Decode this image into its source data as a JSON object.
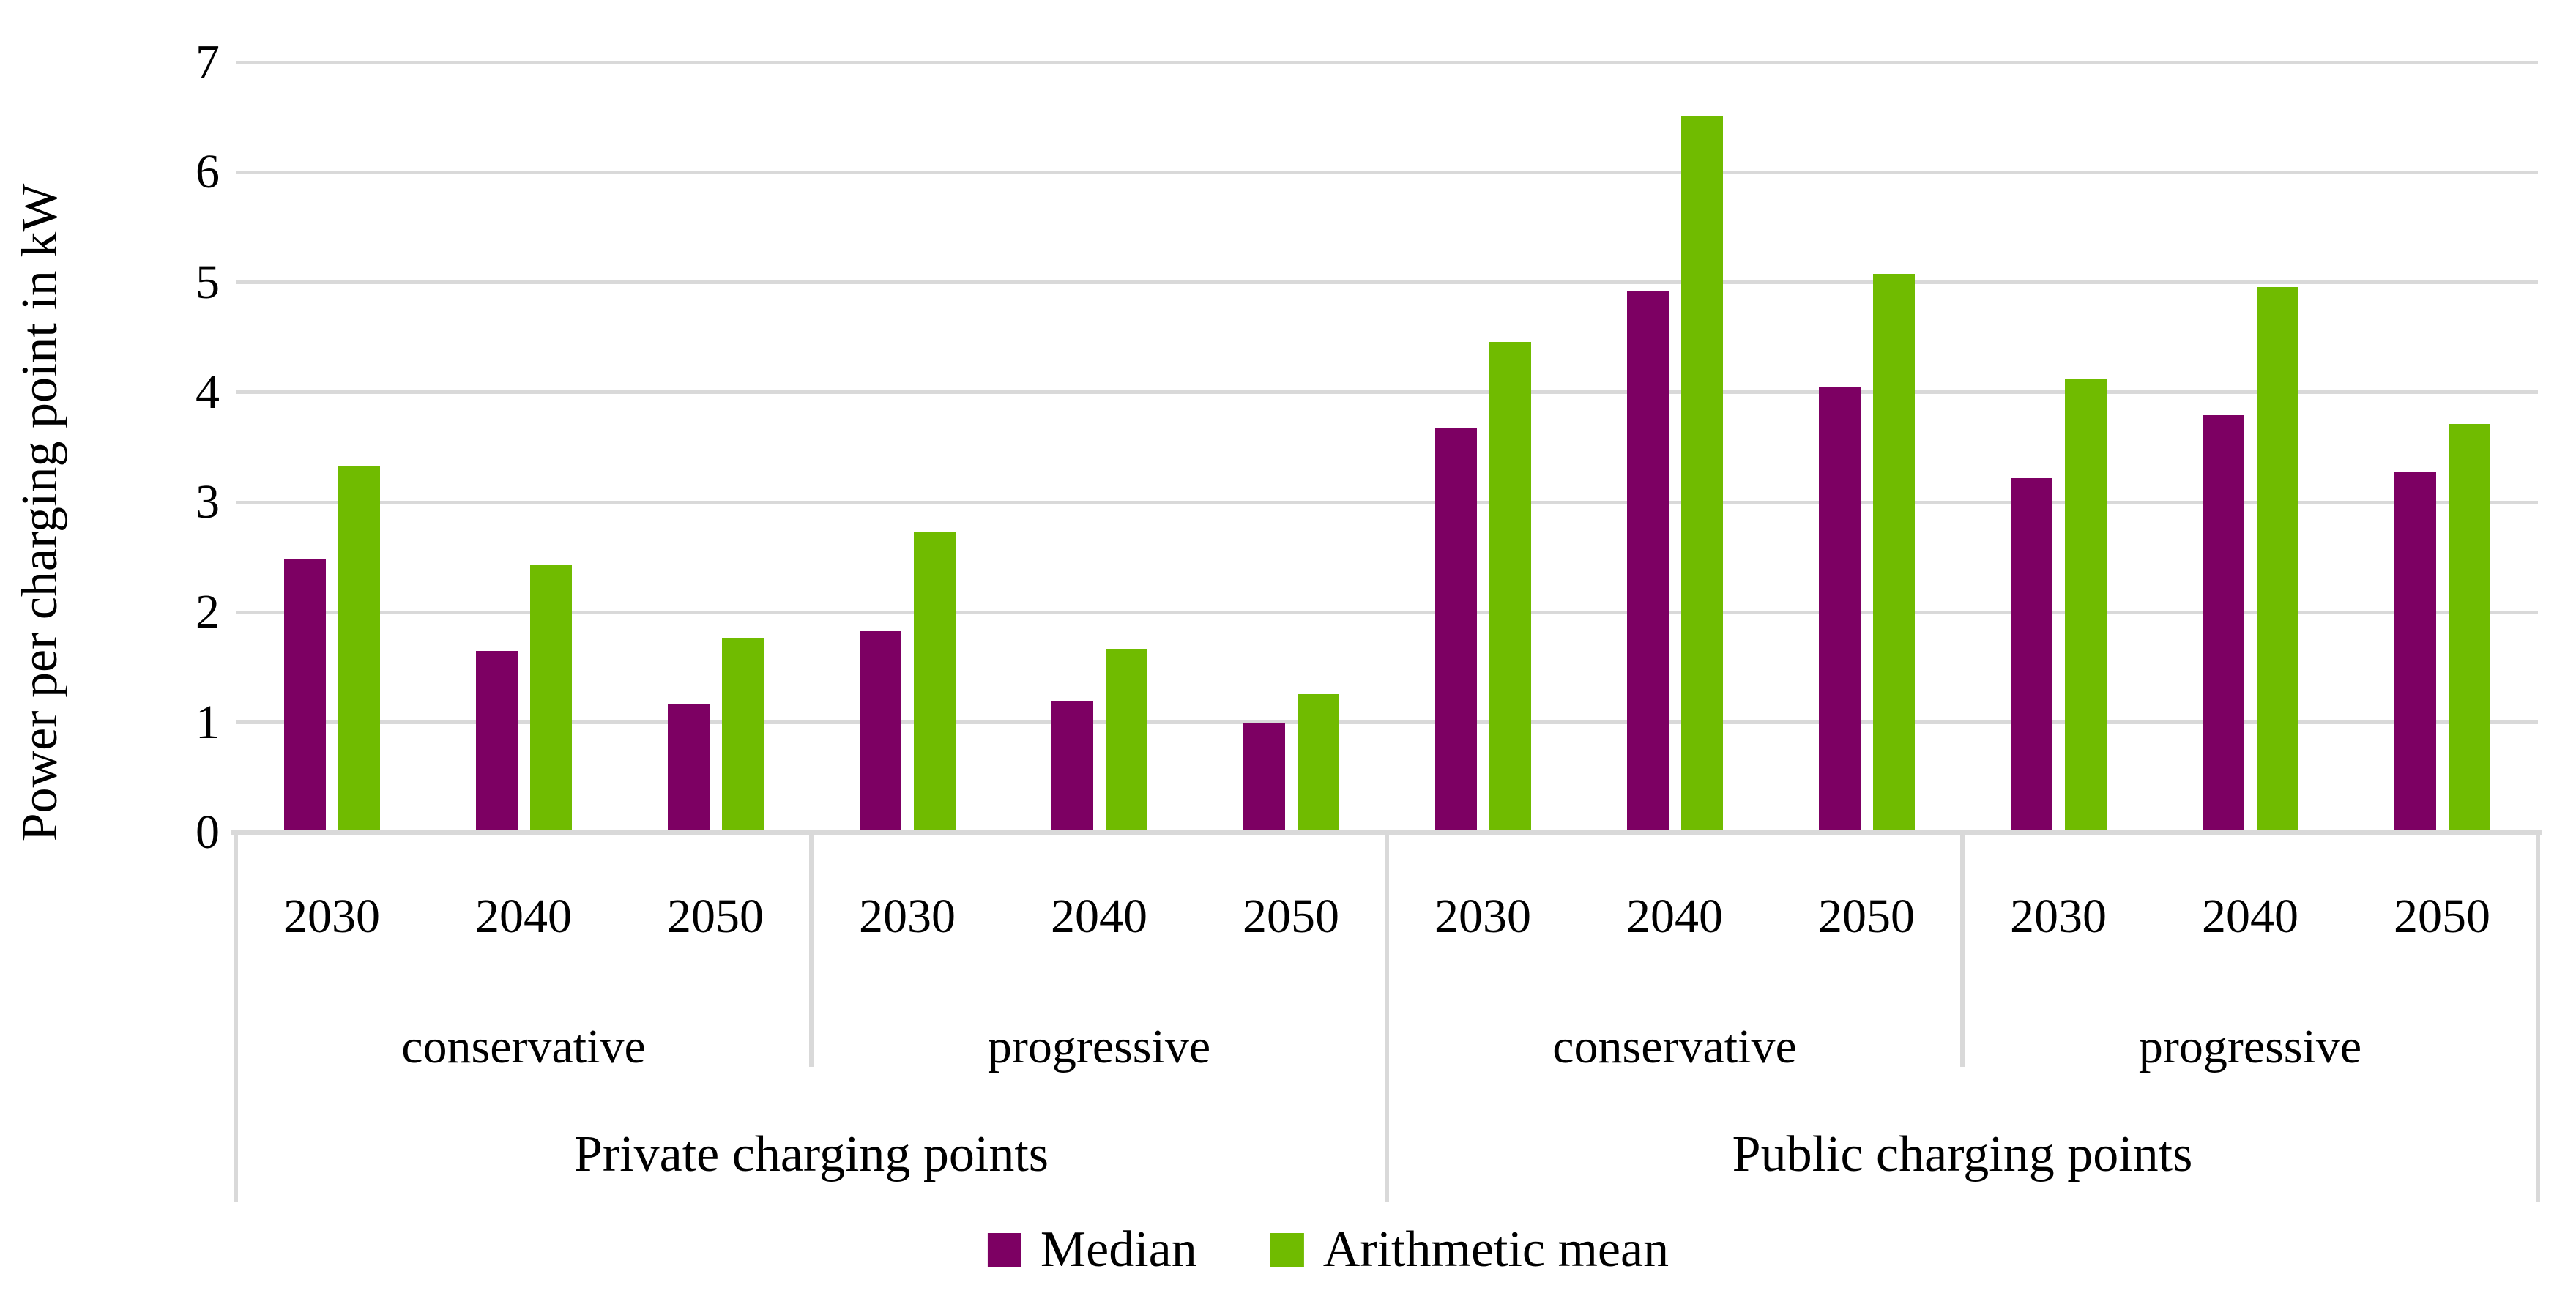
{
  "chart_data": {
    "type": "bar",
    "title": "",
    "ylabel": "Power per charging point in kW",
    "xlabel": "",
    "ylim": [
      0,
      7
    ],
    "yticks": [
      0,
      1,
      2,
      3,
      4,
      5,
      6,
      7
    ],
    "grid": true,
    "legend_position": "bottom",
    "categories": [
      "2030",
      "2040",
      "2050",
      "2030",
      "2040",
      "2050",
      "2030",
      "2040",
      "2050",
      "2030",
      "2040",
      "2050"
    ],
    "category_groups": [
      {
        "label": "conservative",
        "span": 3
      },
      {
        "label": "progressive",
        "span": 3
      },
      {
        "label": "conservative",
        "span": 3
      },
      {
        "label": "progressive",
        "span": 3
      }
    ],
    "category_supergroups": [
      {
        "label": "Private charging points",
        "span": 6
      },
      {
        "label": "Public charging points",
        "span": 6
      }
    ],
    "series": [
      {
        "name": "Median",
        "color": "#7D0063",
        "values": [
          2.48,
          1.65,
          1.17,
          1.83,
          1.2,
          1.0,
          3.67,
          4.92,
          4.05,
          3.22,
          3.79,
          3.28
        ]
      },
      {
        "name": "Arithmetic mean",
        "color": "#70BB00",
        "values": [
          3.33,
          2.43,
          1.77,
          2.73,
          1.67,
          1.26,
          4.46,
          6.51,
          5.08,
          4.12,
          4.96,
          3.71
        ]
      }
    ]
  },
  "legend": {
    "items": [
      {
        "label": "Median",
        "color": "#7D0063"
      },
      {
        "label": "Arithmetic mean",
        "color": "#70BB00"
      }
    ]
  },
  "colors": {
    "gridline": "#D9D9D9",
    "axis_line": "#D9D9D9",
    "text": "#000000",
    "background": "#FFFFFF"
  }
}
